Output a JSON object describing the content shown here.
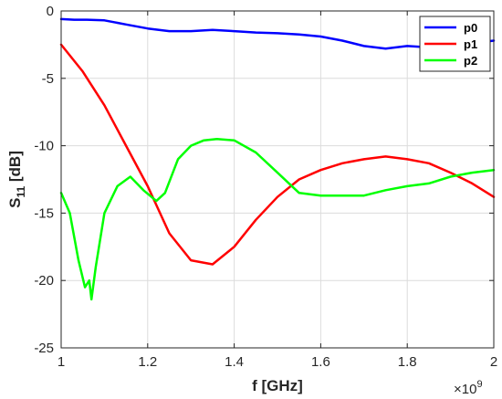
{
  "chart_data": {
    "type": "line",
    "title": "",
    "xlabel": "f [GHz]",
    "ylabel_main": "S",
    "ylabel_sub": "11",
    "ylabel_rest": " [dB]",
    "xlim": [
      1.0,
      2.0
    ],
    "ylim": [
      -25,
      0
    ],
    "x_ticks": [
      1.0,
      1.2,
      1.4,
      1.6,
      1.8,
      2.0
    ],
    "x_tick_labels": [
      "1",
      "1.2",
      "1.4",
      "1.6",
      "1.8",
      "2"
    ],
    "y_ticks": [
      0,
      -5,
      -10,
      -15,
      -20,
      -25
    ],
    "y_tick_labels": [
      "0",
      "-5",
      "-10",
      "-15",
      "-20",
      "-25"
    ],
    "x_multiplier_base": "×10",
    "x_multiplier_exp": "9",
    "grid": true,
    "legend_position": "top-right",
    "series": [
      {
        "name": "p0",
        "color": "#0000ff",
        "x": [
          1.0,
          1.03,
          1.06,
          1.1,
          1.15,
          1.2,
          1.25,
          1.3,
          1.35,
          1.4,
          1.45,
          1.5,
          1.55,
          1.6,
          1.65,
          1.7,
          1.75,
          1.8,
          1.85,
          1.9,
          1.95,
          2.0
        ],
        "y": [
          -0.6,
          -0.65,
          -0.65,
          -0.7,
          -1.0,
          -1.3,
          -1.5,
          -1.5,
          -1.4,
          -1.5,
          -1.6,
          -1.65,
          -1.75,
          -1.9,
          -2.2,
          -2.6,
          -2.8,
          -2.6,
          -2.7,
          -2.6,
          -2.4,
          -2.2
        ]
      },
      {
        "name": "p1",
        "color": "#ff0000",
        "x": [
          1.0,
          1.05,
          1.1,
          1.15,
          1.2,
          1.25,
          1.3,
          1.35,
          1.4,
          1.45,
          1.5,
          1.55,
          1.6,
          1.65,
          1.7,
          1.75,
          1.8,
          1.85,
          1.9,
          1.95,
          2.0
        ],
        "y": [
          -2.5,
          -4.5,
          -7.0,
          -10.0,
          -13.0,
          -16.5,
          -18.5,
          -18.8,
          -17.5,
          -15.5,
          -13.8,
          -12.5,
          -11.8,
          -11.3,
          -11.0,
          -10.8,
          -11.0,
          -11.3,
          -12.0,
          -12.8,
          -13.8
        ]
      },
      {
        "name": "p2",
        "color": "#00ff00",
        "x": [
          1.0,
          1.02,
          1.04,
          1.055,
          1.065,
          1.07,
          1.08,
          1.1,
          1.13,
          1.16,
          1.19,
          1.22,
          1.24,
          1.27,
          1.3,
          1.33,
          1.36,
          1.4,
          1.45,
          1.5,
          1.55,
          1.6,
          1.65,
          1.7,
          1.75,
          1.8,
          1.85,
          1.9,
          1.95,
          2.0
        ],
        "y": [
          -13.5,
          -15.0,
          -18.5,
          -20.5,
          -20.0,
          -21.4,
          -19.0,
          -15.0,
          -13.0,
          -12.3,
          -13.3,
          -14.1,
          -13.5,
          -11.0,
          -10.0,
          -9.6,
          -9.5,
          -9.6,
          -10.5,
          -12.0,
          -13.5,
          -13.7,
          -13.7,
          -13.7,
          -13.3,
          -13.0,
          -12.8,
          -12.3,
          -12.0,
          -11.8
        ]
      }
    ]
  }
}
